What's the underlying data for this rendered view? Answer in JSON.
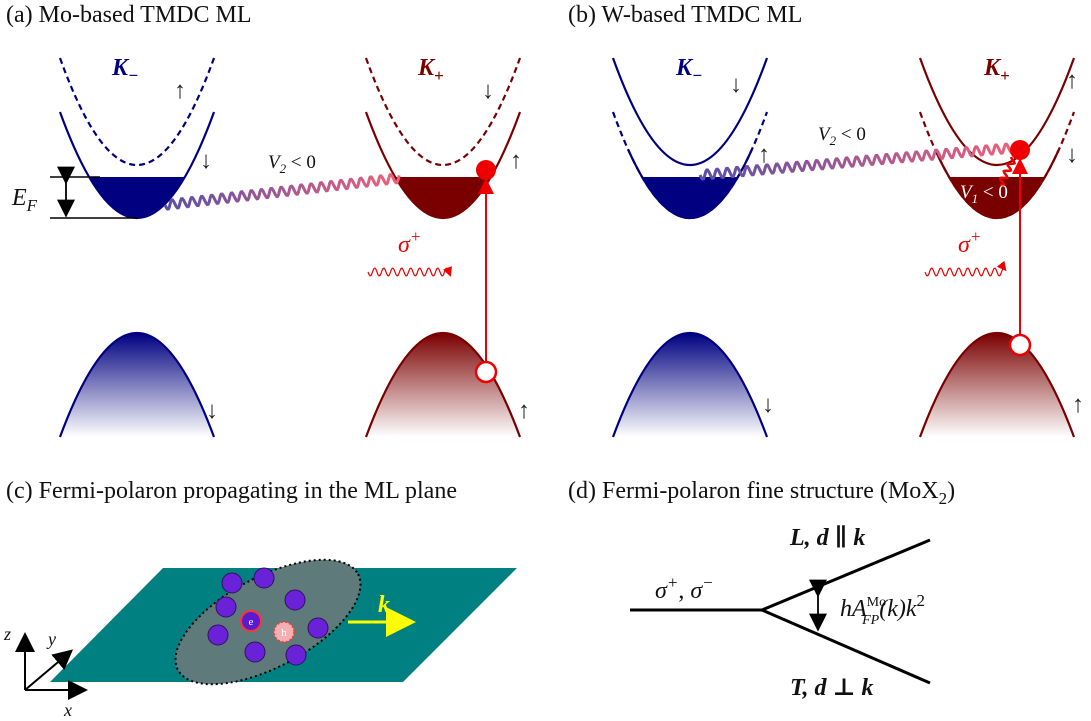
{
  "panel_a": {
    "title": "(a) Mo-based TMDC ML",
    "k_minus": {
      "main": "K",
      "sub": "−"
    },
    "k_plus": {
      "main": "K",
      "sub": "+"
    },
    "spins": [
      "↑",
      "↓",
      "↓",
      "↑",
      "↓",
      "↑"
    ],
    "fermi_energy": {
      "main": "E",
      "sub": "F"
    },
    "interaction": {
      "main": "V",
      "sub": "2",
      "rest": " < 0"
    },
    "light": {
      "main": "σ",
      "sup": "+"
    }
  },
  "panel_b": {
    "title": "(b) W-based TMDC ML",
    "k_minus": {
      "main": "K",
      "sub": "−"
    },
    "k_plus": {
      "main": "K",
      "sub": "+"
    },
    "spins": [
      "↓",
      "↑",
      "↑",
      "↓",
      "↓",
      "↑"
    ],
    "interaction": {
      "main": "V",
      "sub": "2",
      "rest": " < 0"
    },
    "intravalley": {
      "main": "V",
      "sub": "1",
      "rest": " < 0"
    },
    "light": {
      "main": "σ",
      "sup": "+"
    }
  },
  "panel_c": {
    "title": "(c) Fermi-polaron propagating in the ML plane",
    "momentum": "k",
    "electron": "e",
    "hole": "h",
    "axes": [
      "z",
      "y",
      "x"
    ]
  },
  "panel_d": {
    "title": {
      "main": "(d) Fermi-polaron fine structure (MoX",
      "sub": "2",
      "rest": ")"
    },
    "input": {
      "s1": "σ",
      "sup1": "+",
      "sep": ",  ",
      "s2": "σ",
      "sup2": "−"
    },
    "upper": "L,  d ∥ k",
    "lower": "T,  d ⊥ k",
    "splitting": {
      "main": "hA",
      "sup": "Mo",
      "sub": "FP",
      "rest": "(k)k",
      "sup2": "2"
    }
  }
}
